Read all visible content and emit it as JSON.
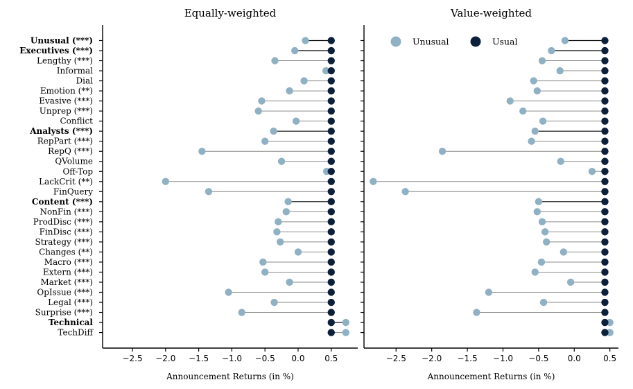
{
  "colors": {
    "unusual": "#8fb1c3",
    "usual": "#0c1f3b"
  },
  "chart_data": [
    {
      "type": "scatter",
      "title": "Equally-weighted",
      "xlabel": "Announcement Returns (in %)",
      "xlim": [
        -2.95,
        0.9
      ],
      "xticks": [
        -2.5,
        -2.0,
        -1.5,
        -1.0,
        -0.5,
        0.0,
        0.5
      ],
      "xtick_labels": [
        "−2.5",
        "−2.0",
        "−1.5",
        "−1.0",
        "−0.5",
        "0.0",
        "0.5"
      ],
      "legend": null,
      "categories": [
        "Unusual (***)",
        "Executives (***)",
        "Lengthy (***)",
        "Informal",
        "Dial",
        "Emotion (**)",
        "Evasive (***)",
        "Unprep (***)",
        "Conflict",
        "Analysts (***)",
        "RepPart (***)",
        "RepQ (***)",
        "QVolume",
        "Off-Top",
        "LackCrit (**)",
        "FinQuery",
        "Content (***)",
        "NonFin (***)",
        "ProdDisc (***)",
        "FinDisc (***)",
        "Strategy (***)",
        "Changes (**)",
        "Macro (***)",
        "Extern (***)",
        "Market (***)",
        "OpIssue (***)",
        "Legal (***)",
        "Surprise (***)",
        "Technical",
        "TechDiff"
      ],
      "bold_categories": [
        "Unusual (***)",
        "Executives (***)",
        "Analysts (***)",
        "Content (***)",
        "Technical"
      ],
      "series": [
        {
          "name": "Unusual",
          "values": [
            0.11,
            -0.05,
            -0.35,
            0.42,
            0.09,
            -0.13,
            -0.55,
            -0.6,
            -0.03,
            -0.37,
            -0.5,
            -1.45,
            -0.25,
            0.43,
            -2.0,
            -1.35,
            -0.15,
            -0.18,
            -0.3,
            -0.32,
            -0.27,
            0.0,
            -0.53,
            -0.5,
            -0.13,
            -1.05,
            -0.36,
            -0.85,
            0.72,
            0.72
          ]
        },
        {
          "name": "Usual",
          "values": [
            0.5,
            0.5,
            0.5,
            0.5,
            0.5,
            0.5,
            0.5,
            0.5,
            0.5,
            0.5,
            0.5,
            0.5,
            0.5,
            0.5,
            0.5,
            0.5,
            0.5,
            0.5,
            0.5,
            0.5,
            0.5,
            0.5,
            0.5,
            0.5,
            0.5,
            0.5,
            0.5,
            0.5,
            0.5,
            0.5
          ]
        }
      ]
    },
    {
      "type": "scatter",
      "title": "Value-weighted",
      "xlabel": "Announcement Returns (in %)",
      "xlim": [
        -2.95,
        0.62
      ],
      "xticks": [
        -2.5,
        -2.0,
        -1.5,
        -1.0,
        -0.5,
        0.0,
        0.5
      ],
      "xtick_labels": [
        "−2.5",
        "−2.0",
        "−1.5",
        "−1.0",
        "−0.5",
        "0.0",
        "0.5"
      ],
      "legend": {
        "position": "top-left",
        "entries": [
          "Unusual",
          "Usual"
        ]
      },
      "categories": [
        "Unusual (***)",
        "Executives (***)",
        "Lengthy (***)",
        "Informal",
        "Dial",
        "Emotion (**)",
        "Evasive (***)",
        "Unprep (***)",
        "Conflict",
        "Analysts (***)",
        "RepPart (***)",
        "RepQ (***)",
        "QVolume",
        "Off-Top",
        "LackCrit (**)",
        "FinQuery",
        "Content (***)",
        "NonFin (***)",
        "ProdDisc (***)",
        "FinDisc (***)",
        "Strategy (***)",
        "Changes (**)",
        "Macro (***)",
        "Extern (***)",
        "Market (***)",
        "OpIssue (***)",
        "Legal (***)",
        "Surprise (***)",
        "Technical",
        "TechDiff"
      ],
      "series": [
        {
          "name": "Unusual",
          "values": [
            -0.13,
            -0.32,
            -0.45,
            -0.2,
            -0.57,
            -0.52,
            -0.9,
            -0.72,
            -0.44,
            -0.55,
            -0.6,
            -1.85,
            -0.19,
            0.25,
            -2.82,
            -2.37,
            -0.5,
            -0.52,
            -0.45,
            -0.41,
            -0.39,
            -0.15,
            -0.46,
            -0.55,
            -0.05,
            -1.2,
            -0.43,
            -1.37,
            0.5,
            0.5
          ]
        },
        {
          "name": "Usual",
          "values": [
            0.43,
            0.43,
            0.43,
            0.43,
            0.43,
            0.43,
            0.43,
            0.43,
            0.43,
            0.43,
            0.43,
            0.43,
            0.43,
            0.43,
            0.43,
            0.43,
            0.43,
            0.43,
            0.43,
            0.43,
            0.43,
            0.43,
            0.43,
            0.43,
            0.43,
            0.43,
            0.43,
            0.43,
            0.43,
            0.43
          ]
        }
      ]
    }
  ]
}
